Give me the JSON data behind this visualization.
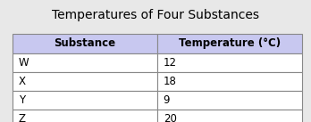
{
  "title": "Temperatures of Four Substances",
  "col_headers": [
    "Substance",
    "Temperature (°C)"
  ],
  "rows": [
    [
      "W",
      "12"
    ],
    [
      "X",
      "18"
    ],
    [
      "Y",
      "9"
    ],
    [
      "Z",
      "20"
    ]
  ],
  "header_bg": "#c8c8f0",
  "row_bg": "#ffffff",
  "border_color": "#888888",
  "title_fontsize": 10,
  "header_fontsize": 8.5,
  "cell_fontsize": 8.5,
  "title_color": "#000000",
  "fig_bg": "#e8e8e8",
  "col_split": 0.5
}
